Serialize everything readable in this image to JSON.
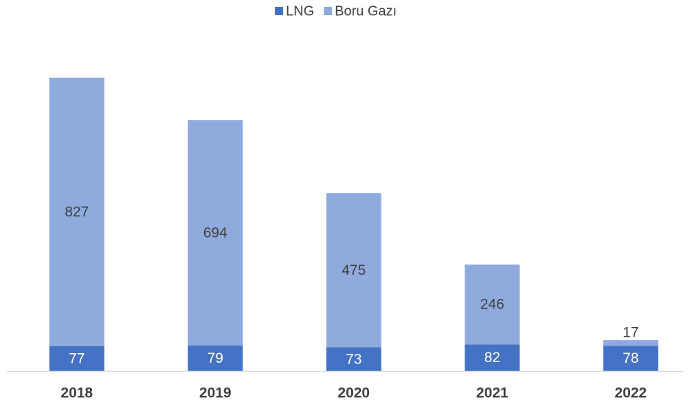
{
  "chart_data": {
    "type": "stacked_bar",
    "categories": [
      "2018",
      "2019",
      "2020",
      "2021",
      "2022"
    ],
    "series": [
      {
        "name": "LNG",
        "color": "#4472c4",
        "values": [
          77,
          79,
          73,
          82,
          78
        ]
      },
      {
        "name": "Boru Gazı",
        "color": "#8faadc",
        "values": [
          827,
          694,
          475,
          246,
          17
        ]
      }
    ],
    "legend": "top"
  }
}
